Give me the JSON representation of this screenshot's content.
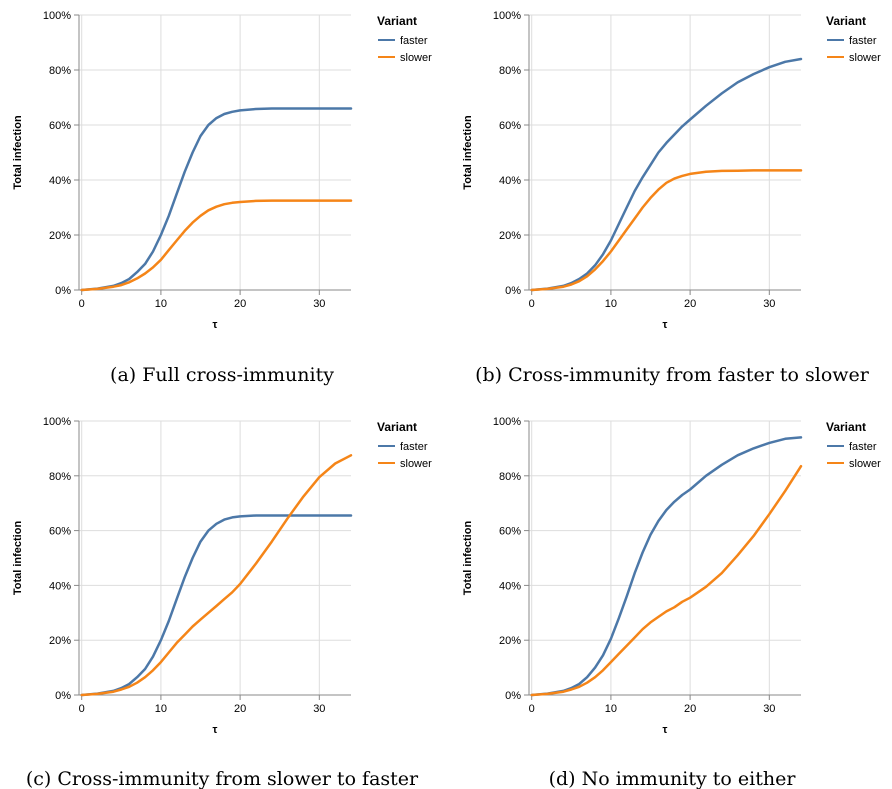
{
  "colors": {
    "faster": "#4c78a8",
    "slower": "#f58518"
  },
  "chart_data": [
    {
      "type": "line",
      "caption": "(a) Full cross-immunity",
      "xlabel": "τ",
      "ylabel": "Total infection",
      "xlim": [
        0,
        34
      ],
      "ylim": [
        0,
        1
      ],
      "xticks": [
        0,
        10,
        20,
        30
      ],
      "yticks": [
        0,
        0.2,
        0.4,
        0.6,
        0.8,
        1.0
      ],
      "ytick_labels": [
        "0%",
        "20%",
        "40%",
        "60%",
        "80%",
        "100%"
      ],
      "grid": true,
      "legend": {
        "title": "Variant",
        "placement": "right"
      },
      "series": [
        {
          "name": "faster",
          "x": [
            0,
            2,
            4,
            5,
            6,
            7,
            8,
            9,
            10,
            11,
            12,
            13,
            14,
            15,
            16,
            17,
            18,
            19,
            20,
            22,
            24,
            26,
            28,
            30,
            32,
            34
          ],
          "values": [
            0,
            0.005,
            0.015,
            0.025,
            0.04,
            0.065,
            0.095,
            0.14,
            0.2,
            0.27,
            0.35,
            0.43,
            0.5,
            0.56,
            0.6,
            0.625,
            0.64,
            0.648,
            0.653,
            0.658,
            0.66,
            0.66,
            0.66,
            0.66,
            0.66,
            0.66
          ]
        },
        {
          "name": "slower",
          "x": [
            0,
            2,
            4,
            5,
            6,
            7,
            8,
            9,
            10,
            11,
            12,
            13,
            14,
            15,
            16,
            17,
            18,
            19,
            20,
            22,
            24,
            26,
            28,
            30,
            32,
            34
          ],
          "values": [
            0,
            0.004,
            0.012,
            0.018,
            0.028,
            0.042,
            0.06,
            0.082,
            0.11,
            0.145,
            0.18,
            0.215,
            0.245,
            0.27,
            0.29,
            0.303,
            0.312,
            0.317,
            0.32,
            0.324,
            0.325,
            0.325,
            0.325,
            0.325,
            0.325,
            0.325
          ]
        }
      ]
    },
    {
      "type": "line",
      "caption": "(b) Cross-immunity from faster to slower",
      "xlabel": "τ",
      "ylabel": "Total infection",
      "xlim": [
        0,
        34
      ],
      "ylim": [
        0,
        1
      ],
      "xticks": [
        0,
        10,
        20,
        30
      ],
      "yticks": [
        0,
        0.2,
        0.4,
        0.6,
        0.8,
        1.0
      ],
      "ytick_labels": [
        "0%",
        "20%",
        "40%",
        "60%",
        "80%",
        "100%"
      ],
      "grid": true,
      "legend": {
        "title": "Variant",
        "placement": "right"
      },
      "series": [
        {
          "name": "faster",
          "x": [
            0,
            2,
            4,
            5,
            6,
            7,
            8,
            9,
            10,
            11,
            12,
            13,
            14,
            15,
            16,
            17,
            18,
            19,
            20,
            22,
            24,
            26,
            28,
            30,
            32,
            34
          ],
          "values": [
            0,
            0.005,
            0.015,
            0.025,
            0.04,
            0.06,
            0.09,
            0.13,
            0.18,
            0.24,
            0.3,
            0.36,
            0.41,
            0.455,
            0.5,
            0.535,
            0.565,
            0.595,
            0.62,
            0.67,
            0.715,
            0.755,
            0.785,
            0.81,
            0.83,
            0.84
          ]
        },
        {
          "name": "slower",
          "x": [
            0,
            2,
            4,
            5,
            6,
            7,
            8,
            9,
            10,
            11,
            12,
            13,
            14,
            15,
            16,
            17,
            18,
            19,
            20,
            22,
            24,
            26,
            28,
            30,
            32,
            34
          ],
          "values": [
            0,
            0.004,
            0.012,
            0.02,
            0.032,
            0.05,
            0.075,
            0.105,
            0.14,
            0.18,
            0.22,
            0.26,
            0.3,
            0.335,
            0.365,
            0.39,
            0.405,
            0.415,
            0.422,
            0.43,
            0.433,
            0.434,
            0.435,
            0.435,
            0.435,
            0.435
          ]
        }
      ]
    },
    {
      "type": "line",
      "caption": "(c) Cross-immunity from slower to faster",
      "xlabel": "τ",
      "ylabel": "Total infection",
      "xlim": [
        0,
        34
      ],
      "ylim": [
        0,
        1
      ],
      "xticks": [
        0,
        10,
        20,
        30
      ],
      "yticks": [
        0,
        0.2,
        0.4,
        0.6,
        0.8,
        1.0
      ],
      "ytick_labels": [
        "0%",
        "20%",
        "40%",
        "60%",
        "80%",
        "100%"
      ],
      "grid": true,
      "legend": {
        "title": "Variant",
        "placement": "right"
      },
      "series": [
        {
          "name": "faster",
          "x": [
            0,
            2,
            4,
            5,
            6,
            7,
            8,
            9,
            10,
            11,
            12,
            13,
            14,
            15,
            16,
            17,
            18,
            19,
            20,
            22,
            24,
            26,
            28,
            30,
            32,
            34
          ],
          "values": [
            0,
            0.005,
            0.015,
            0.025,
            0.04,
            0.065,
            0.095,
            0.14,
            0.2,
            0.27,
            0.35,
            0.43,
            0.5,
            0.56,
            0.6,
            0.625,
            0.64,
            0.648,
            0.652,
            0.655,
            0.655,
            0.655,
            0.655,
            0.655,
            0.655,
            0.655
          ]
        },
        {
          "name": "slower",
          "x": [
            0,
            2,
            4,
            5,
            6,
            7,
            8,
            9,
            10,
            11,
            12,
            13,
            14,
            15,
            16,
            17,
            18,
            19,
            20,
            22,
            24,
            26,
            28,
            30,
            32,
            34
          ],
          "values": [
            0,
            0.004,
            0.012,
            0.02,
            0.03,
            0.045,
            0.065,
            0.09,
            0.12,
            0.155,
            0.19,
            0.22,
            0.25,
            0.275,
            0.3,
            0.325,
            0.35,
            0.375,
            0.405,
            0.48,
            0.56,
            0.645,
            0.725,
            0.795,
            0.845,
            0.875
          ]
        }
      ]
    },
    {
      "type": "line",
      "caption": "(d) No immunity to either",
      "xlabel": "τ",
      "ylabel": "Total infection",
      "xlim": [
        0,
        34
      ],
      "ylim": [
        0,
        1
      ],
      "xticks": [
        0,
        10,
        20,
        30
      ],
      "yticks": [
        0,
        0.2,
        0.4,
        0.6,
        0.8,
        1.0
      ],
      "ytick_labels": [
        "0%",
        "20%",
        "40%",
        "60%",
        "80%",
        "100%"
      ],
      "grid": true,
      "legend": {
        "title": "Variant",
        "placement": "right"
      },
      "series": [
        {
          "name": "faster",
          "x": [
            0,
            2,
            4,
            5,
            6,
            7,
            8,
            9,
            10,
            11,
            12,
            13,
            14,
            15,
            16,
            17,
            18,
            19,
            20,
            22,
            24,
            26,
            28,
            30,
            32,
            34
          ],
          "values": [
            0,
            0.005,
            0.015,
            0.025,
            0.04,
            0.065,
            0.1,
            0.145,
            0.205,
            0.28,
            0.36,
            0.445,
            0.52,
            0.585,
            0.635,
            0.675,
            0.705,
            0.73,
            0.75,
            0.8,
            0.84,
            0.875,
            0.9,
            0.92,
            0.935,
            0.94
          ]
        },
        {
          "name": "slower",
          "x": [
            0,
            2,
            4,
            5,
            6,
            7,
            8,
            9,
            10,
            11,
            12,
            13,
            14,
            15,
            16,
            17,
            18,
            19,
            20,
            22,
            24,
            26,
            28,
            30,
            32,
            34
          ],
          "values": [
            0,
            0.004,
            0.012,
            0.02,
            0.03,
            0.045,
            0.065,
            0.09,
            0.12,
            0.15,
            0.18,
            0.21,
            0.24,
            0.265,
            0.285,
            0.305,
            0.32,
            0.34,
            0.355,
            0.395,
            0.445,
            0.51,
            0.58,
            0.66,
            0.745,
            0.835
          ]
        }
      ]
    }
  ]
}
